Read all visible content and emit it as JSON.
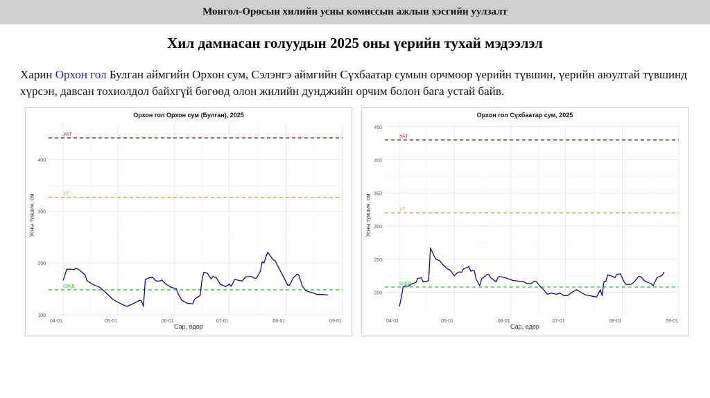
{
  "header": {
    "title": "Монгол-Оросын хилийн усны комиссын ажлын хэсгийн уулзалт"
  },
  "slide": {
    "title": "Хил дамнасан голуудын 2025 оны үерийн тухай мэдээлэл",
    "paragraph": {
      "prefix": "Харин ",
      "highlight": "Орхон гол",
      "rest": " Булган аймгийн Орхон сум, Сэлэнгэ аймгийн Сүхбаатар сумын орчмоор үерийн түвшин, үерийн аюултай түвшинд хүрсэн, давсан тохиолдол байхгүй бөгөөд олон жилийн дунджийн орчим болон бага устай байв."
    },
    "highlight_color": "#1f1fd0"
  },
  "chart_data": [
    {
      "type": "line",
      "title": "Орхон гол Орхон сум (Булган), 2025",
      "xlabel": "Сар, өдөр",
      "ylabel": "Усны түвшин, см",
      "x_ticks": [
        "04-01",
        "05-01",
        "06-01",
        "07-01",
        "08-01",
        "09-01"
      ],
      "y_ticks": [
        100,
        200,
        300,
        400
      ],
      "xlim": [
        "03-24",
        "09-01"
      ],
      "ylim": [
        97,
        470
      ],
      "grid": true,
      "line_color": "#0a0a8c",
      "thresholds": [
        {
          "label": "УАТ",
          "value": 442,
          "color": "#b03030"
        },
        {
          "label": "УТ",
          "value": 327,
          "color": "#dba83a"
        },
        {
          "label": "ОЖД",
          "value": 148,
          "color": "#3ccc3c"
        }
      ],
      "series": [
        {
          "x": [
            "04-01",
            "04-03",
            "04-05",
            "04-07",
            "04-08",
            "04-10",
            "04-13",
            "04-14",
            "04-17",
            "04-21",
            "04-24",
            "04-28",
            "05-01",
            "05-05",
            "05-06",
            "05-08",
            "05-11",
            "05-13",
            "05-14",
            "05-15",
            "05-16",
            "05-18",
            "05-20",
            "05-22",
            "05-24",
            "05-25",
            "05-27",
            "05-30",
            "06-02",
            "06-03",
            "06-05",
            "06-08",
            "06-11",
            "06-12",
            "06-15",
            "06-16",
            "06-17",
            "06-19",
            "06-21",
            "06-22",
            "06-24",
            "06-26",
            "06-29",
            "07-01",
            "07-02",
            "07-04",
            "07-08",
            "07-10",
            "07-13",
            "07-15",
            "07-16",
            "07-18",
            "07-19",
            "07-20",
            "07-22",
            "07-25",
            "07-26",
            "07-28",
            "07-31",
            "08-02",
            "08-03",
            "08-05",
            "08-07",
            "08-08",
            "08-10",
            "08-12",
            "08-16",
            "08-18",
            "08-21",
            "08-24"
          ],
          "y": [
            166,
            188,
            188,
            187,
            190,
            186,
            177,
            166,
            159,
            153,
            144,
            130,
            124,
            117,
            116,
            119,
            124,
            128,
            126,
            116,
            168,
            171,
            172,
            165,
            165,
            167,
            160,
            153,
            150,
            140,
            128,
            122,
            121,
            130,
            137,
            166,
            182,
            180,
            169,
            174,
            171,
            159,
            154,
            159,
            155,
            168,
            165,
            173,
            174,
            170,
            171,
            184,
            202,
            200,
            221,
            206,
            205,
            191,
            171,
            157,
            157,
            171,
            178,
            177,
            155,
            146,
            142,
            139,
            139,
            138
          ]
        }
      ]
    },
    {
      "type": "line",
      "title": "Орхон гол Сүхбаатар сум, 2025",
      "xlabel": "Сар, өдөр",
      "ylabel": "Усны түвшин, см",
      "x_ticks": [
        "04-01",
        "05-01",
        "06-01",
        "07-01",
        "08-01",
        "09-01"
      ],
      "y_ticks": [
        200,
        250,
        300,
        350,
        400,
        450
      ],
      "xlim": [
        "03-24",
        "09-01"
      ],
      "ylim": [
        164,
        455
      ],
      "grid": true,
      "line_color": "#0a0a8c",
      "thresholds": [
        {
          "label": "УАТ",
          "value": 430,
          "color": "#b03030"
        },
        {
          "label": "УТ",
          "value": 320,
          "color": "#dba83a"
        },
        {
          "label": "ОЖД",
          "value": 208,
          "color": "#3ccc3c"
        }
      ],
      "series": [
        {
          "x": [
            "04-01",
            "04-02",
            "04-03",
            "04-04",
            "04-06",
            "04-07",
            "04-09",
            "04-10",
            "04-11",
            "04-13",
            "04-14",
            "04-16",
            "04-17",
            "04-18",
            "04-20",
            "04-21",
            "04-23",
            "04-25",
            "04-27",
            "04-29",
            "05-01",
            "05-03",
            "05-04",
            "05-05",
            "05-06",
            "05-09",
            "05-10",
            "05-12",
            "05-13",
            "05-15",
            "05-16",
            "05-19",
            "05-20",
            "05-21",
            "05-24",
            "05-25",
            "05-26",
            "05-29",
            "06-02",
            "06-05",
            "06-08",
            "06-10",
            "06-12",
            "06-14",
            "06-15",
            "06-17",
            "06-19",
            "06-21",
            "06-23",
            "06-26",
            "06-28",
            "06-30",
            "07-02",
            "07-04",
            "07-07",
            "07-10",
            "07-12",
            "07-14",
            "07-18",
            "07-20",
            "07-21",
            "07-22",
            "07-23",
            "07-24",
            "07-26",
            "07-28",
            "07-29",
            "07-31",
            "08-02",
            "08-03",
            "08-06",
            "08-08",
            "08-10",
            "08-11",
            "08-13",
            "08-15",
            "08-17",
            "08-18",
            "08-20",
            "08-23",
            "08-24"
          ],
          "y": [
            179,
            192,
            208,
            210,
            209,
            212,
            214,
            215,
            221,
            222,
            216,
            216,
            218,
            267,
            255,
            250,
            248,
            241,
            236,
            233,
            225,
            230,
            231,
            230,
            235,
            239,
            232,
            233,
            220,
            210,
            220,
            227,
            227,
            222,
            216,
            223,
            224,
            222,
            218,
            217,
            216,
            213,
            213,
            217,
            216,
            209,
            204,
            197,
            199,
            197,
            199,
            195,
            195,
            199,
            204,
            199,
            196,
            195,
            193,
            204,
            195,
            216,
            216,
            226,
            225,
            222,
            227,
            228,
            216,
            212,
            212,
            217,
            224,
            224,
            218,
            215,
            213,
            210,
            222,
            226,
            231
          ]
        }
      ]
    }
  ]
}
